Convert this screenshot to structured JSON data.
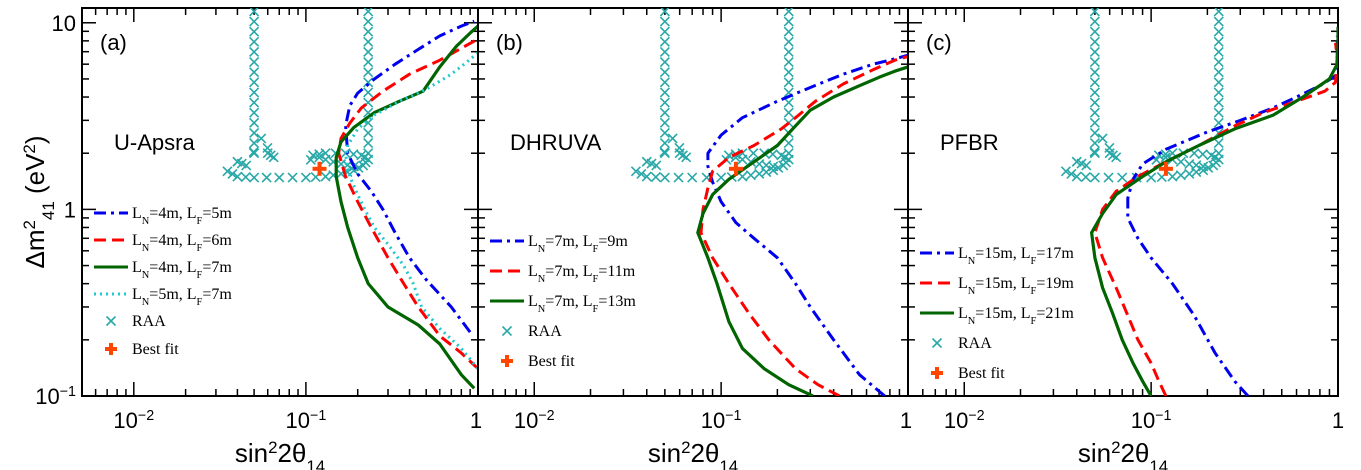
{
  "chart_data": {
    "type": "line",
    "x_axis": {
      "label_main": "sin",
      "label_sup": "2",
      "label_mid": "2θ",
      "label_sub": "14",
      "scale": "log",
      "range": [
        0.005,
        1.0
      ],
      "ticks": [
        {
          "v": 0.01,
          "base": "10",
          "exp": "−2"
        },
        {
          "v": 0.1,
          "base": "10",
          "exp": "−1"
        },
        {
          "v": 1,
          "base": "1",
          "exp": ""
        }
      ]
    },
    "y_axis": {
      "label_main": "Δm",
      "label_sup": "2",
      "label_sub": "41",
      "label_unit_open": " (eV",
      "label_unit_sup": "2",
      "label_unit_close": ")",
      "scale": "log",
      "range": [
        0.1,
        12.0
      ],
      "ticks": [
        {
          "v": 0.1,
          "base": "10",
          "exp": "−1"
        },
        {
          "v": 1,
          "base": "1",
          "exp": ""
        },
        {
          "v": 10,
          "base": "10",
          "exp": ""
        }
      ]
    },
    "legend_placement": "lower-left",
    "raa_text": "RAA",
    "bestfit_text": "Best fit",
    "raa": {
      "left_branch_x": 0.05,
      "right_branch_x": 0.23,
      "top_y": 11.5,
      "corner_y": 2.0,
      "band": [
        [
          0.035,
          1.6
        ],
        [
          0.04,
          1.5
        ],
        [
          0.05,
          1.48
        ],
        [
          0.07,
          1.48
        ],
        [
          0.1,
          1.48
        ],
        [
          0.13,
          1.5
        ],
        [
          0.16,
          1.55
        ],
        [
          0.19,
          1.62
        ],
        [
          0.215,
          1.72
        ],
        [
          0.23,
          1.85
        ],
        [
          0.21,
          1.95
        ],
        [
          0.17,
          2.0
        ],
        [
          0.13,
          2.0
        ],
        [
          0.11,
          1.95
        ],
        [
          0.13,
          1.85
        ],
        [
          0.16,
          1.75
        ],
        [
          0.19,
          1.7
        ],
        [
          0.06,
          2.0
        ],
        [
          0.065,
          1.9
        ],
        [
          0.055,
          2.4
        ],
        [
          0.045,
          1.72
        ],
        [
          0.04,
          1.8
        ]
      ]
    },
    "bestfit": {
      "x": 0.12,
      "y": 1.65
    },
    "panels": [
      {
        "tag": "(a)",
        "reactor": "U-Apsra",
        "series": [
          {
            "name": "L_N=4m, L_F=5m",
            "ln": "4m",
            "lf": "5m",
            "color": "#0000ee",
            "dash": "dashdot",
            "points": [
              [
                0.9,
                0.22
              ],
              [
                0.7,
                0.3
              ],
              [
                0.5,
                0.42
              ],
              [
                0.4,
                0.55
              ],
              [
                0.33,
                0.75
              ],
              [
                0.28,
                1.0
              ],
              [
                0.24,
                1.25
              ],
              [
                0.2,
                1.55
              ],
              [
                0.175,
                2.0
              ],
              [
                0.17,
                2.8
              ],
              [
                0.18,
                3.6
              ],
              [
                0.2,
                4.2
              ],
              [
                0.25,
                5.0
              ],
              [
                0.33,
                6.0
              ],
              [
                0.45,
                7.2
              ],
              [
                0.6,
                8.5
              ],
              [
                0.8,
                9.6
              ],
              [
                0.95,
                10.2
              ]
            ]
          },
          {
            "name": "L_N=4m, L_F=6m",
            "ln": "4m",
            "lf": "6m",
            "color": "#ff0000",
            "dash": "dash",
            "points": [
              [
                1.0,
                0.14
              ],
              [
                0.8,
                0.17
              ],
              [
                0.6,
                0.21
              ],
              [
                0.45,
                0.3
              ],
              [
                0.37,
                0.4
              ],
              [
                0.3,
                0.55
              ],
              [
                0.24,
                0.8
              ],
              [
                0.2,
                1.1
              ],
              [
                0.17,
                1.5
              ],
              [
                0.155,
                2.0
              ],
              [
                0.16,
                2.4
              ],
              [
                0.18,
                2.9
              ],
              [
                0.21,
                3.5
              ],
              [
                0.28,
                4.3
              ],
              [
                0.4,
                5.3
              ],
              [
                0.6,
                6.3
              ],
              [
                0.8,
                7.3
              ],
              [
                1.0,
                8.2
              ]
            ]
          },
          {
            "name": "L_N=4m, L_F=7m",
            "ln": "4m",
            "lf": "7m",
            "color": "#006400",
            "dash": "solid",
            "points": [
              [
                0.95,
                0.11
              ],
              [
                0.8,
                0.13
              ],
              [
                0.6,
                0.19
              ],
              [
                0.45,
                0.24
              ],
              [
                0.3,
                0.3
              ],
              [
                0.23,
                0.4
              ],
              [
                0.2,
                0.55
              ],
              [
                0.175,
                0.8
              ],
              [
                0.16,
                1.1
              ],
              [
                0.15,
                1.5
              ],
              [
                0.15,
                1.9
              ],
              [
                0.16,
                2.3
              ],
              [
                0.19,
                2.75
              ],
              [
                0.25,
                3.3
              ],
              [
                0.35,
                3.8
              ],
              [
                0.48,
                4.3
              ],
              [
                0.6,
                5.8
              ],
              [
                0.75,
                7.5
              ],
              [
                0.9,
                8.8
              ],
              [
                1.0,
                9.6
              ]
            ]
          },
          {
            "name": "L_N=5m, L_F=7m",
            "ln": "5m",
            "lf": "7m",
            "color": "#20c8d0",
            "dash": "dot",
            "points": [
              [
                1.0,
                0.14
              ],
              [
                0.8,
                0.18
              ],
              [
                0.6,
                0.23
              ],
              [
                0.47,
                0.3
              ],
              [
                0.42,
                0.4
              ],
              [
                0.37,
                0.5
              ],
              [
                0.3,
                0.65
              ],
              [
                0.25,
                0.8
              ],
              [
                0.22,
                1.0
              ],
              [
                0.2,
                1.2
              ],
              [
                0.18,
                1.5
              ],
              [
                0.17,
                1.8
              ],
              [
                0.175,
                2.2
              ],
              [
                0.2,
                2.7
              ],
              [
                0.25,
                3.2
              ],
              [
                0.35,
                3.8
              ],
              [
                0.5,
                4.4
              ],
              [
                0.7,
                5.3
              ],
              [
                0.85,
                6.1
              ],
              [
                1.0,
                6.9
              ]
            ]
          }
        ]
      },
      {
        "tag": "(b)",
        "reactor": "DHRUVA",
        "series": [
          {
            "name": "L_N=7m, L_F=9m",
            "ln": "7m",
            "lf": "9m",
            "color": "#0000ee",
            "dash": "dashdot",
            "points": [
              [
                0.75,
                0.1
              ],
              [
                0.55,
                0.13
              ],
              [
                0.4,
                0.2
              ],
              [
                0.3,
                0.3
              ],
              [
                0.25,
                0.4
              ],
              [
                0.2,
                0.55
              ],
              [
                0.15,
                0.7
              ],
              [
                0.12,
                0.85
              ],
              [
                0.1,
                1.1
              ],
              [
                0.09,
                1.4
              ],
              [
                0.085,
                1.7
              ],
              [
                0.085,
                2.0
              ],
              [
                0.1,
                2.5
              ],
              [
                0.13,
                3.1
              ],
              [
                0.2,
                3.8
              ],
              [
                0.3,
                4.5
              ],
              [
                0.45,
                5.3
              ],
              [
                0.65,
                6.0
              ],
              [
                0.85,
                6.4
              ],
              [
                1.0,
                6.7
              ]
            ]
          },
          {
            "name": "L_N=7m, L_F=11m",
            "ln": "7m",
            "lf": "11m",
            "color": "#ff0000",
            "dash": "dash",
            "points": [
              [
                0.43,
                0.1
              ],
              [
                0.33,
                0.115
              ],
              [
                0.25,
                0.14
              ],
              [
                0.18,
                0.2
              ],
              [
                0.14,
                0.28
              ],
              [
                0.11,
                0.4
              ],
              [
                0.09,
                0.55
              ],
              [
                0.078,
                0.75
              ],
              [
                0.08,
                1.0
              ],
              [
                0.085,
                1.3
              ],
              [
                0.09,
                1.6
              ],
              [
                0.11,
                1.9
              ],
              [
                0.15,
                2.2
              ],
              [
                0.21,
                2.7
              ],
              [
                0.25,
                3.1
              ],
              [
                0.32,
                3.8
              ],
              [
                0.45,
                4.7
              ],
              [
                0.65,
                5.6
              ],
              [
                0.85,
                6.3
              ],
              [
                1.0,
                6.6
              ]
            ]
          },
          {
            "name": "L_N=7m, L_F=13m",
            "ln": "7m",
            "lf": "13m",
            "color": "#006400",
            "dash": "solid",
            "points": [
              [
                0.31,
                0.1
              ],
              [
                0.23,
                0.115
              ],
              [
                0.17,
                0.14
              ],
              [
                0.13,
                0.18
              ],
              [
                0.11,
                0.25
              ],
              [
                0.095,
                0.4
              ],
              [
                0.085,
                0.55
              ],
              [
                0.075,
                0.75
              ],
              [
                0.08,
                0.95
              ],
              [
                0.09,
                1.2
              ],
              [
                0.11,
                1.45
              ],
              [
                0.15,
                1.8
              ],
              [
                0.2,
                2.2
              ],
              [
                0.25,
                2.8
              ],
              [
                0.3,
                3.4
              ],
              [
                0.4,
                4.0
              ],
              [
                0.55,
                4.6
              ],
              [
                0.7,
                5.1
              ],
              [
                0.85,
                5.5
              ],
              [
                1.0,
                5.8
              ]
            ]
          }
        ]
      },
      {
        "tag": "(c)",
        "reactor": "PFBR",
        "series": [
          {
            "name": "L_N=15m, L_F=17m",
            "ln": "15m",
            "lf": "17m",
            "color": "#0000ee",
            "dash": "dashdot",
            "points": [
              [
                0.33,
                0.1
              ],
              [
                0.28,
                0.12
              ],
              [
                0.22,
                0.17
              ],
              [
                0.17,
                0.27
              ],
              [
                0.13,
                0.4
              ],
              [
                0.1,
                0.55
              ],
              [
                0.085,
                0.7
              ],
              [
                0.075,
                0.9
              ],
              [
                0.075,
                1.15
              ],
              [
                0.08,
                1.45
              ],
              [
                0.09,
                1.75
              ],
              [
                0.12,
                2.1
              ],
              [
                0.2,
                2.6
              ],
              [
                0.3,
                3.0
              ],
              [
                0.45,
                3.5
              ],
              [
                0.6,
                4.0
              ],
              [
                0.8,
                4.6
              ],
              [
                0.97,
                5.2
              ],
              [
                0.99,
                6.5
              ],
              [
                0.99,
                8.5
              ]
            ]
          },
          {
            "name": "L_N=15m, L_F=19m",
            "ln": "15m",
            "lf": "19m",
            "color": "#ff0000",
            "dash": "dash",
            "points": [
              [
                0.12,
                0.1
              ],
              [
                0.11,
                0.12
              ],
              [
                0.1,
                0.15
              ],
              [
                0.085,
                0.2
              ],
              [
                0.075,
                0.27
              ],
              [
                0.065,
                0.38
              ],
              [
                0.055,
                0.55
              ],
              [
                0.05,
                0.75
              ],
              [
                0.055,
                1.0
              ],
              [
                0.065,
                1.25
              ],
              [
                0.085,
                1.5
              ],
              [
                0.12,
                1.8
              ],
              [
                0.18,
                2.2
              ],
              [
                0.28,
                2.8
              ],
              [
                0.4,
                3.3
              ],
              [
                0.6,
                3.8
              ],
              [
                0.85,
                4.3
              ],
              [
                0.97,
                4.8
              ],
              [
                0.99,
                6.5
              ],
              [
                0.97,
                7.8
              ]
            ]
          },
          {
            "name": "L_N=15m, L_F=21m",
            "ln": "15m",
            "lf": "21m",
            "color": "#006400",
            "dash": "solid",
            "points": [
              [
                0.1,
                0.1
              ],
              [
                0.09,
                0.12
              ],
              [
                0.08,
                0.15
              ],
              [
                0.07,
                0.2
              ],
              [
                0.062,
                0.28
              ],
              [
                0.055,
                0.38
              ],
              [
                0.05,
                0.55
              ],
              [
                0.048,
                0.75
              ],
              [
                0.055,
                0.95
              ],
              [
                0.065,
                1.2
              ],
              [
                0.09,
                1.5
              ],
              [
                0.12,
                1.8
              ],
              [
                0.18,
                2.2
              ],
              [
                0.28,
                2.7
              ],
              [
                0.45,
                3.2
              ],
              [
                0.65,
                4.0
              ],
              [
                0.9,
                5.0
              ],
              [
                0.99,
                6.0
              ],
              [
                1.0,
                7.5
              ],
              [
                1.0,
                9.5
              ]
            ]
          }
        ]
      }
    ]
  }
}
